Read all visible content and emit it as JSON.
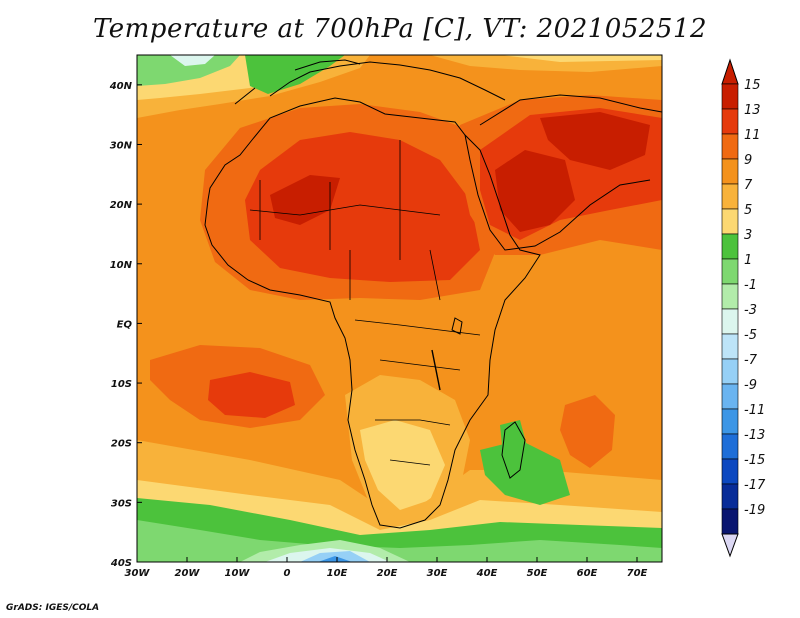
{
  "title": "Temperature at 700hPa [C], VT: 2021052512",
  "credit": "GrADS: IGES/COLA",
  "map": {
    "lon_range": [
      -30,
      75
    ],
    "lat_range": [
      -40,
      45
    ],
    "x_ticks": [
      {
        "lon": -30,
        "label": "30W"
      },
      {
        "lon": -20,
        "label": "20W"
      },
      {
        "lon": -10,
        "label": "10W"
      },
      {
        "lon": 0,
        "label": "0"
      },
      {
        "lon": 10,
        "label": "10E"
      },
      {
        "lon": 20,
        "label": "20E"
      },
      {
        "lon": 30,
        "label": "30E"
      },
      {
        "lon": 40,
        "label": "40E"
      },
      {
        "lon": 50,
        "label": "50E"
      },
      {
        "lon": 60,
        "label": "60E"
      },
      {
        "lon": 70,
        "label": "70E"
      }
    ],
    "y_ticks": [
      {
        "lat": 40,
        "label": "40N"
      },
      {
        "lat": 30,
        "label": "30N"
      },
      {
        "lat": 20,
        "label": "20N"
      },
      {
        "lat": 10,
        "label": "10N"
      },
      {
        "lat": 0,
        "label": "EQ"
      },
      {
        "lat": -10,
        "label": "10S"
      },
      {
        "lat": -20,
        "label": "20S"
      },
      {
        "lat": -30,
        "label": "30S"
      },
      {
        "lat": -40,
        "label": "40S"
      }
    ]
  },
  "colorbar": {
    "labels": [
      "15",
      "13",
      "11",
      "9",
      "7",
      "5",
      "3",
      "1",
      "-1",
      "-3",
      "-5",
      "-7",
      "-9",
      "-11",
      "-13",
      "-15",
      "-17",
      "-19"
    ],
    "colors": [
      "#c81e00",
      "#e63a0c",
      "#f06a12",
      "#f4921c",
      "#f8b23a",
      "#fcd872",
      "#4cc23c",
      "#7ed870",
      "#b2ecaa",
      "#dcf6ee",
      "#bde4f8",
      "#96d0f6",
      "#6ab4f0",
      "#3c96e6",
      "#1e6ed8",
      "#0c48c0",
      "#082c98",
      "#0a1670"
    ]
  }
}
